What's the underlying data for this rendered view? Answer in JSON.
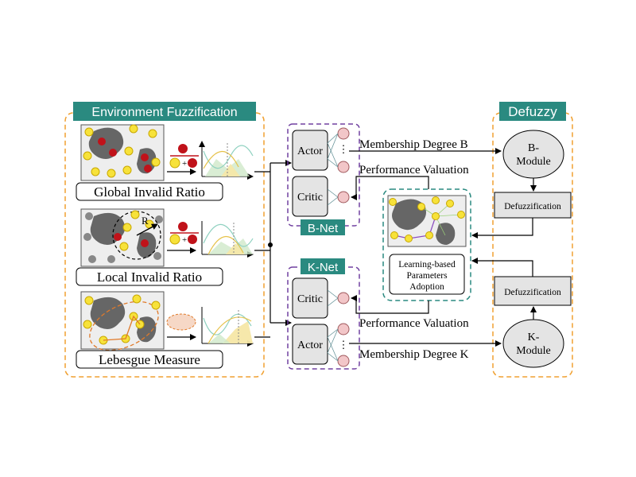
{
  "environment": {
    "title": "Environment Fuzzification",
    "panels": [
      {
        "label": "Global Invalid Ratio"
      },
      {
        "label": "Local Invalid Ratio",
        "radius_symbol": "R"
      },
      {
        "label": "Lebesgue Measure"
      }
    ]
  },
  "b_net": {
    "title": "B-Net",
    "actor": "Actor",
    "critic": "Critic"
  },
  "k_net": {
    "title": "K-Net",
    "actor": "Actor",
    "critic": "Critic"
  },
  "learning": {
    "label_line1": "Learning-based",
    "label_line2": "Parameters",
    "label_line3": "Adoption"
  },
  "defuzzy": {
    "title": "Defuzzy",
    "b_module_line1": "B-",
    "b_module_line2": "Module",
    "k_module_line1": "K-",
    "k_module_line2": "Module",
    "defuzz_top": "Defuzzification",
    "defuzz_bottom": "Defuzzification"
  },
  "edges": {
    "membership_b": "Membership Degree B",
    "perf_top": "Performance Valuation",
    "perf_bottom": "Performance Valuation",
    "membership_k": "Membership Degree K"
  },
  "colors": {
    "teal": "#2a8a80",
    "orange_dash": "#f0a030",
    "purple_dash": "#7040a0",
    "teal_dash": "#2a8a80",
    "yellow": "#f7e23a",
    "red": "#c0121a",
    "node_pink": "#f2c6c8",
    "box_gray": "#e4e4e4",
    "obstacle": "#666666"
  }
}
